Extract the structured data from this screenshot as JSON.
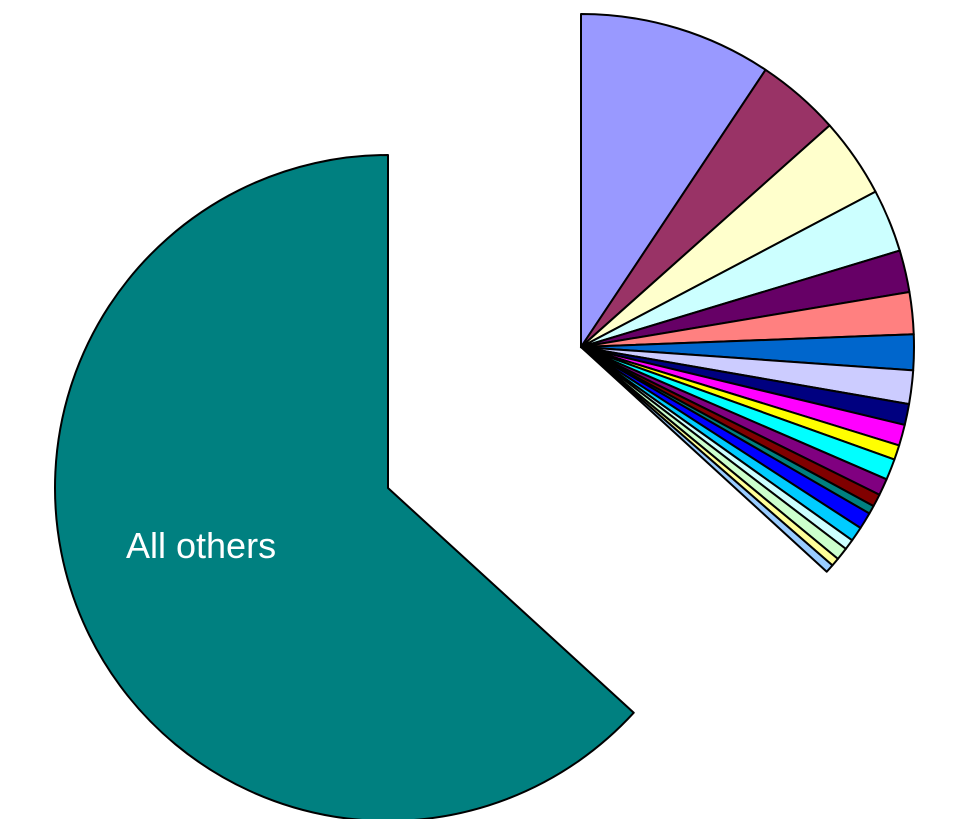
{
  "chart_data": {
    "type": "pie",
    "title": "",
    "legend": "none",
    "start_angle_deg": 0,
    "direction": "clockwise",
    "slices": [
      {
        "label": "",
        "value": 9.2,
        "color": "#9999ff",
        "exploded": true
      },
      {
        "label": "",
        "value": 4.0,
        "color": "#993366",
        "exploded": true
      },
      {
        "label": "",
        "value": 3.8,
        "color": "#ffffcc",
        "exploded": true
      },
      {
        "label": "",
        "value": 3.0,
        "color": "#ccffff",
        "exploded": true
      },
      {
        "label": "",
        "value": 2.0,
        "color": "#660066",
        "exploded": true
      },
      {
        "label": "",
        "value": 2.0,
        "color": "#ff8080",
        "exploded": true
      },
      {
        "label": "",
        "value": 1.7,
        "color": "#0066cc",
        "exploded": true
      },
      {
        "label": "",
        "value": 1.6,
        "color": "#ccccff",
        "exploded": true
      },
      {
        "label": "",
        "value": 1.0,
        "color": "#000080",
        "exploded": true
      },
      {
        "label": "",
        "value": 1.0,
        "color": "#ff00ff",
        "exploded": true
      },
      {
        "label": "",
        "value": 0.7,
        "color": "#ffff00",
        "exploded": true
      },
      {
        "label": "",
        "value": 1.0,
        "color": "#00ffff",
        "exploded": true
      },
      {
        "label": "",
        "value": 0.8,
        "color": "#800080",
        "exploded": true
      },
      {
        "label": "",
        "value": 0.6,
        "color": "#800000",
        "exploded": true
      },
      {
        "label": "",
        "value": 0.4,
        "color": "#008080",
        "exploded": true
      },
      {
        "label": "",
        "value": 0.8,
        "color": "#0000ff",
        "exploded": true
      },
      {
        "label": "",
        "value": 0.7,
        "color": "#00ccff",
        "exploded": true
      },
      {
        "label": "",
        "value": 0.5,
        "color": "#ccffff",
        "exploded": true
      },
      {
        "label": "",
        "value": 0.6,
        "color": "#ccffcc",
        "exploded": true
      },
      {
        "label": "",
        "value": 0.4,
        "color": "#ffff99",
        "exploded": true
      },
      {
        "label": "",
        "value": 0.4,
        "color": "#99ccff",
        "exploded": true
      },
      {
        "label": "All others",
        "value": 62.2,
        "color": "#008080",
        "exploded": false
      }
    ]
  }
}
